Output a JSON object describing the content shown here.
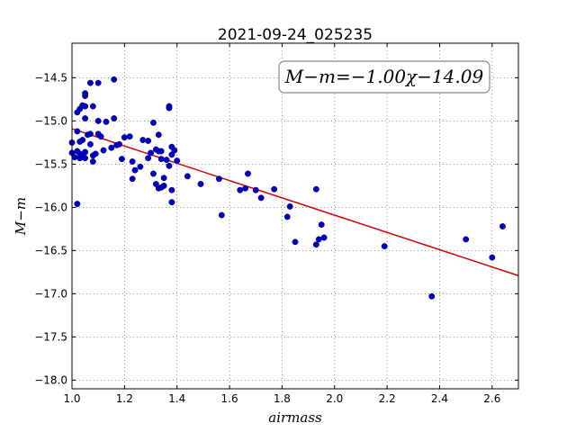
{
  "chart_data": {
    "type": "scatter",
    "title": "2021-09-24_025235",
    "xlabel": "airmass",
    "ylabel": "M−m",
    "xlim": [
      1.0,
      2.7
    ],
    "ylim": [
      -18.1,
      -14.1
    ],
    "x_ticks": [
      "1.0",
      "1.2",
      "1.4",
      "1.6",
      "1.8",
      "2.0",
      "2.2",
      "2.4",
      "2.6"
    ],
    "y_ticks": [
      "-14.5",
      "-15.0",
      "-15.5",
      "-16.0",
      "-16.5",
      "-17.0",
      "-17.5",
      "-18.0"
    ],
    "grid": true,
    "annotation": "M−m=−1.00χ−14.09",
    "fit": {
      "slope": -1.0,
      "intercept": -14.09
    },
    "colors": {
      "points": "#0000bf",
      "fit": "#d40000"
    },
    "points": [
      [
        1.0,
        -15.25
      ],
      [
        1.0,
        -15.37
      ],
      [
        1.01,
        -15.42
      ],
      [
        1.02,
        -15.35
      ],
      [
        1.02,
        -15.96
      ],
      [
        1.02,
        -14.9
      ],
      [
        1.02,
        -15.12
      ],
      [
        1.03,
        -15.24
      ],
      [
        1.03,
        -14.86
      ],
      [
        1.03,
        -15.38
      ],
      [
        1.03,
        -15.43
      ],
      [
        1.04,
        -15.22
      ],
      [
        1.04,
        -14.82
      ],
      [
        1.04,
        -15.42
      ],
      [
        1.05,
        -14.71
      ],
      [
        1.05,
        -14.68
      ],
      [
        1.05,
        -14.97
      ],
      [
        1.05,
        -14.83
      ],
      [
        1.05,
        -15.36
      ],
      [
        1.05,
        -15.43
      ],
      [
        1.06,
        -15.16
      ],
      [
        1.07,
        -15.15
      ],
      [
        1.07,
        -15.27
      ],
      [
        1.07,
        -14.56
      ],
      [
        1.08,
        -14.83
      ],
      [
        1.08,
        -15.4
      ],
      [
        1.08,
        -15.47
      ],
      [
        1.09,
        -15.38
      ],
      [
        1.1,
        -15.15
      ],
      [
        1.1,
        -15.0
      ],
      [
        1.1,
        -14.56
      ],
      [
        1.11,
        -15.18
      ],
      [
        1.12,
        -15.34
      ],
      [
        1.13,
        -15.01
      ],
      [
        1.15,
        -15.31
      ],
      [
        1.16,
        -14.52
      ],
      [
        1.16,
        -14.97
      ],
      [
        1.17,
        -15.28
      ],
      [
        1.18,
        -15.27
      ],
      [
        1.19,
        -15.44
      ],
      [
        1.2,
        -15.19
      ],
      [
        1.22,
        -15.18
      ],
      [
        1.23,
        -15.47
      ],
      [
        1.23,
        -15.67
      ],
      [
        1.24,
        -15.57
      ],
      [
        1.26,
        -15.53
      ],
      [
        1.27,
        -15.22
      ],
      [
        1.29,
        -15.43
      ],
      [
        1.29,
        -15.23
      ],
      [
        1.3,
        -15.37
      ],
      [
        1.31,
        -15.61
      ],
      [
        1.31,
        -15.02
      ],
      [
        1.32,
        -15.33
      ],
      [
        1.32,
        -15.73
      ],
      [
        1.33,
        -15.16
      ],
      [
        1.33,
        -15.35
      ],
      [
        1.33,
        -15.78
      ],
      [
        1.34,
        -15.77
      ],
      [
        1.34,
        -15.44
      ],
      [
        1.34,
        -15.35
      ],
      [
        1.35,
        -15.66
      ],
      [
        1.35,
        -15.75
      ],
      [
        1.36,
        -15.45
      ],
      [
        1.37,
        -14.83
      ],
      [
        1.37,
        -14.85
      ],
      [
        1.37,
        -15.52
      ],
      [
        1.38,
        -15.3
      ],
      [
        1.38,
        -15.39
      ],
      [
        1.38,
        -15.8
      ],
      [
        1.38,
        -15.94
      ],
      [
        1.39,
        -15.34
      ],
      [
        1.4,
        -15.46
      ],
      [
        1.44,
        -15.64
      ],
      [
        1.49,
        -15.73
      ],
      [
        1.56,
        -15.67
      ],
      [
        1.57,
        -16.09
      ],
      [
        1.64,
        -15.8
      ],
      [
        1.66,
        -15.78
      ],
      [
        1.67,
        -15.61
      ],
      [
        1.7,
        -15.8
      ],
      [
        1.72,
        -15.89
      ],
      [
        1.77,
        -15.79
      ],
      [
        1.82,
        -16.11
      ],
      [
        1.83,
        -15.99
      ],
      [
        1.85,
        -16.4
      ],
      [
        1.93,
        -15.79
      ],
      [
        1.93,
        -16.43
      ],
      [
        1.94,
        -16.37
      ],
      [
        1.95,
        -16.2
      ],
      [
        1.96,
        -16.35
      ],
      [
        2.19,
        -16.45
      ],
      [
        2.37,
        -17.03
      ],
      [
        2.5,
        -16.37
      ],
      [
        2.6,
        -16.58
      ],
      [
        2.64,
        -16.22
      ]
    ]
  }
}
